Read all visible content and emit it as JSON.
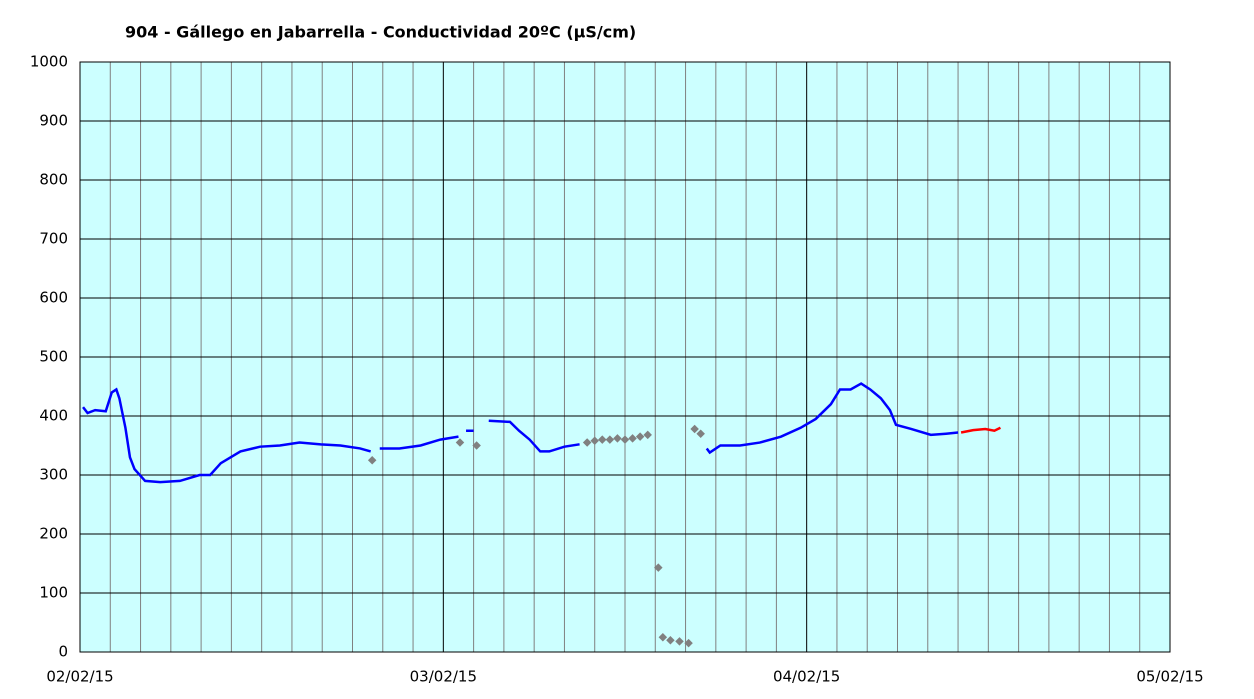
{
  "chart_data": {
    "type": "line",
    "title": "904 - Gállego en Jabarrella - Conductividad 20ºC (µS/cm)",
    "xlim": [
      0,
      72
    ],
    "xticks": [
      {
        "value": 0,
        "label": "02/02/15"
      },
      {
        "value": 24,
        "label": "03/02/15"
      },
      {
        "value": 48,
        "label": "04/02/15"
      },
      {
        "value": 72,
        "label": "05/02/15"
      }
    ],
    "x_minor_ticks": [
      2,
      4,
      6,
      8,
      10,
      12,
      14,
      16,
      18,
      20,
      22,
      26,
      28,
      30,
      32,
      34,
      36,
      38,
      40,
      42,
      44,
      46,
      50,
      52,
      54,
      56,
      58,
      60,
      62,
      64,
      66,
      68,
      70
    ],
    "ylim": [
      0,
      1000
    ],
    "yticks": [
      0,
      100,
      200,
      300,
      400,
      500,
      600,
      700,
      800,
      900,
      1000
    ],
    "grid": true,
    "background": "#ccffff",
    "series": [
      {
        "color": "#0000ff",
        "style": "line",
        "x": [
          0.2,
          0.5,
          1,
          1.7,
          2.1,
          2.4,
          2.6,
          3,
          3.3,
          3.6,
          4.3,
          5.3,
          6.6,
          7.9,
          8.6,
          9.3,
          10.6,
          11.9,
          13.2,
          14.5,
          15.9,
          17.2,
          18.5,
          19.2,
          null,
          19.8,
          21.1,
          22.5,
          23.8,
          25,
          null,
          25.5,
          26,
          null,
          27,
          28.4,
          29,
          29.7,
          30.4,
          31,
          32,
          33,
          null,
          41.4,
          41.6,
          42.3,
          43.6,
          44.9,
          46.3,
          47.6,
          48.6,
          49.6,
          50.2,
          50.9,
          51.6,
          52.2,
          52.9,
          53.5,
          53.9,
          54.9,
          56.2,
          57.2,
          58
        ],
        "values": [
          415,
          405,
          410,
          408,
          440,
          445,
          430,
          380,
          330,
          310,
          290,
          288,
          290,
          300,
          300,
          320,
          340,
          348,
          350,
          355,
          352,
          350,
          345,
          340,
          null,
          345,
          345,
          350,
          360,
          365,
          null,
          375,
          375,
          null,
          392,
          390,
          375,
          360,
          340,
          340,
          348,
          352,
          null,
          345,
          338,
          350,
          350,
          355,
          365,
          380,
          395,
          420,
          445,
          445,
          455,
          445,
          430,
          410,
          385,
          378,
          368,
          370,
          372
        ]
      },
      {
        "color": "#808080",
        "style": "markers",
        "x": [
          19.3,
          25.1,
          26.2,
          33.5,
          34,
          34.5,
          35,
          35.5,
          36,
          36.5,
          37,
          37.5,
          38.2,
          38.5,
          39,
          39.6,
          40.2,
          40.6,
          41
        ],
        "values": [
          325,
          355,
          350,
          355,
          358,
          360,
          360,
          362,
          360,
          362,
          365,
          368,
          143,
          25,
          20,
          18,
          15,
          378,
          370
        ]
      },
      {
        "color": "#ff0000",
        "style": "line",
        "x": [
          58.2,
          59,
          59.8,
          60.4,
          60.8
        ],
        "values": [
          372,
          376,
          378,
          375,
          380
        ]
      }
    ]
  }
}
